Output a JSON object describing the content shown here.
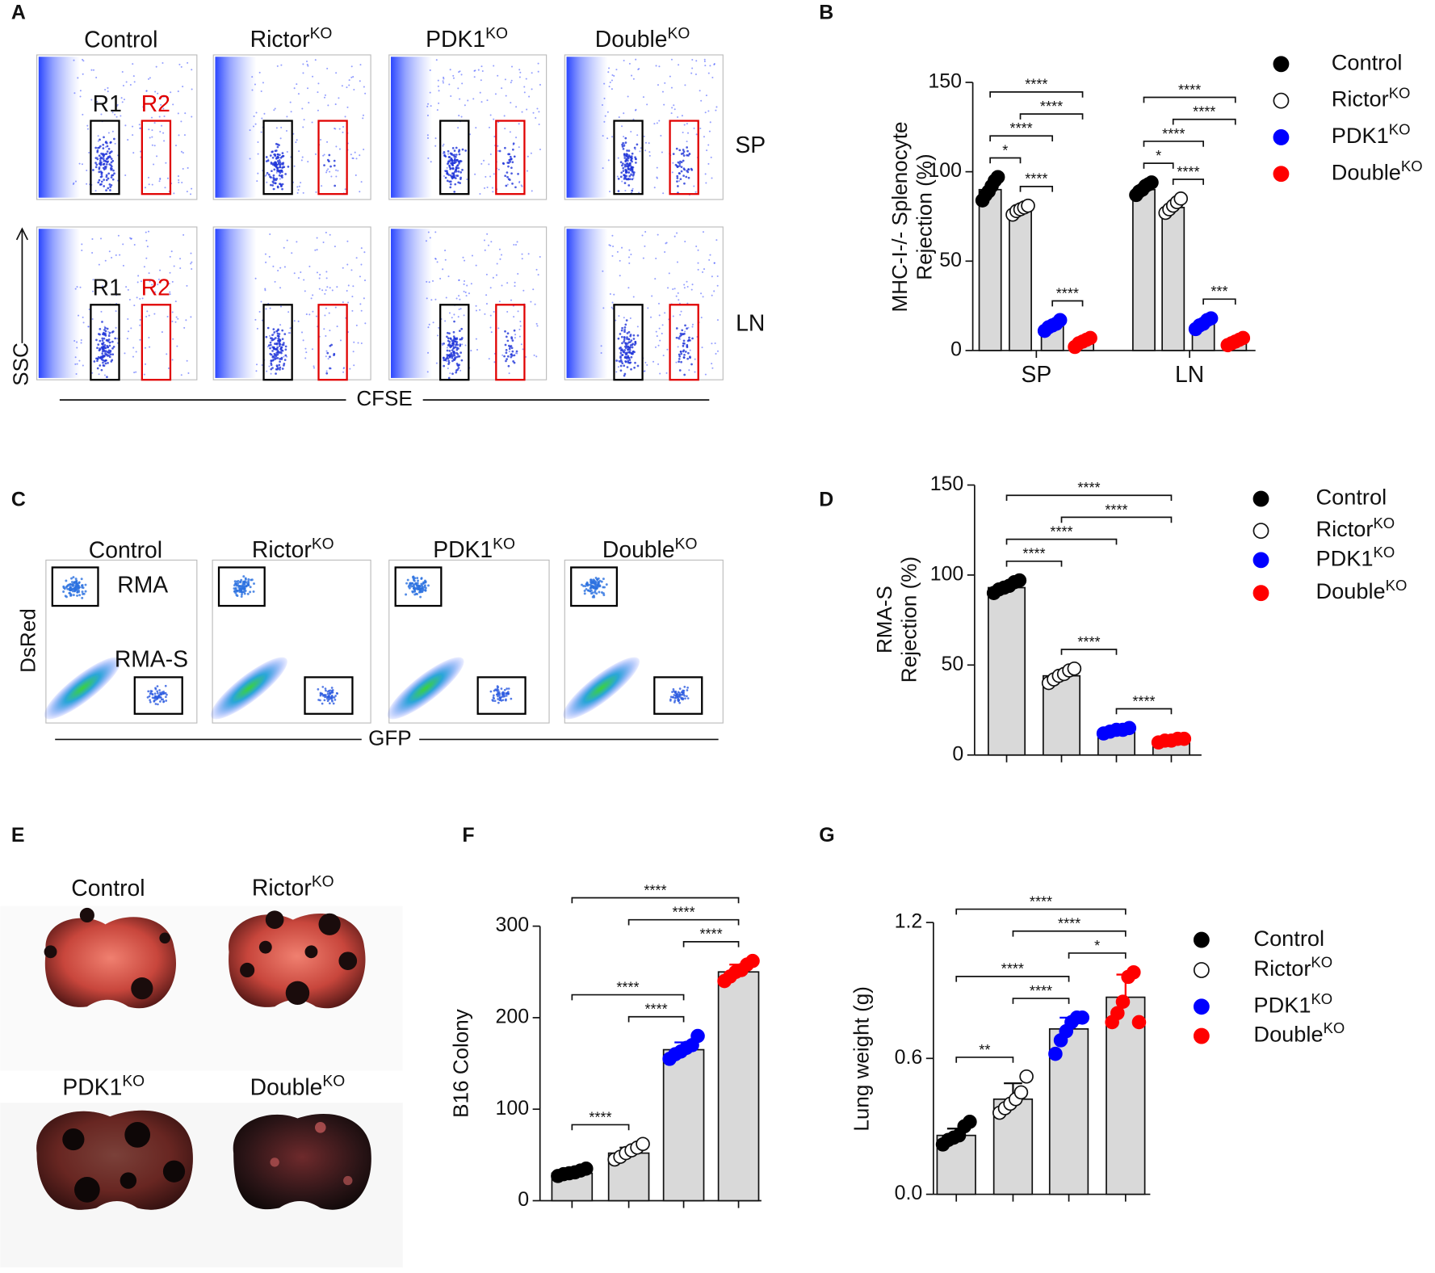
{
  "panels": {
    "A": {
      "label": "A",
      "columns": [
        "Control",
        "RictorKO",
        "PDK1KO",
        "DoubleKO"
      ],
      "rows": [
        "SP",
        "LN"
      ],
      "gates": [
        "R1",
        "R2"
      ],
      "x_axis": "CFSE",
      "y_axis": "SSC"
    },
    "C": {
      "label": "C",
      "columns": [
        "Control",
        "RictorKO",
        "PDK1KO",
        "DoubleKO"
      ],
      "gates": [
        "RMA",
        "RMA-S"
      ],
      "x_axis": "GFP",
      "y_axis": "DsRed"
    },
    "E": {
      "label": "E",
      "photos": [
        "Control",
        "RictorKO",
        "PDK1KO",
        "DoubleKO"
      ]
    }
  },
  "chart_data": [
    {
      "type": "bar",
      "panel_label": "B",
      "y_label": [
        "MHC-I-/- Splenocyte",
        "Rejection (%)"
      ],
      "categories": [
        "SP",
        "LN"
      ],
      "bar_color": "#d9d9d9",
      "ylim": [
        0,
        150
      ],
      "yticks": [
        0,
        50,
        100,
        150
      ],
      "series": [
        {
          "name": "Control",
          "color": "#000000",
          "values": [
            90,
            90
          ],
          "points": [
            [
              84,
              87,
              89,
              92,
              95,
              97
            ],
            [
              87,
              89,
              90,
              92,
              93,
              94
            ]
          ]
        },
        {
          "name": "RictorKO",
          "color": "#ffffff",
          "values": [
            79,
            80
          ],
          "points": [
            [
              76,
              78,
              79,
              80,
              81
            ],
            [
              77,
              79,
              81,
              83,
              85
            ]
          ]
        },
        {
          "name": "PDK1KO",
          "color": "#0000ff",
          "values": [
            14,
            15
          ],
          "points": [
            [
              11,
              13,
              14,
              15,
              17
            ],
            [
              12,
              14,
              15,
              17,
              18
            ]
          ]
        },
        {
          "name": "DoubleKO",
          "color": "#ff0000",
          "values": [
            5,
            5
          ],
          "points": [
            [
              2,
              4,
              5,
              6,
              7
            ],
            [
              3,
              4,
              5,
              6,
              7
            ]
          ]
        }
      ],
      "brackets": [
        {
          "group": 0,
          "from": 0,
          "to": 1,
          "label": "*"
        },
        {
          "group": 0,
          "from": 1,
          "to": 2,
          "label": "****"
        },
        {
          "group": 0,
          "from": 2,
          "to": 3,
          "label": "****"
        },
        {
          "group": 0,
          "from": 0,
          "to": 2,
          "label": "****"
        },
        {
          "group": 0,
          "from": 1,
          "to": 3,
          "label": "****"
        },
        {
          "group": 0,
          "from": 0,
          "to": 3,
          "label": "****"
        },
        {
          "group": 1,
          "from": 0,
          "to": 1,
          "label": "*"
        },
        {
          "group": 1,
          "from": 1,
          "to": 2,
          "label": "****"
        },
        {
          "group": 1,
          "from": 2,
          "to": 3,
          "label": "***"
        },
        {
          "group": 1,
          "from": 0,
          "to": 2,
          "label": "****"
        },
        {
          "group": 1,
          "from": 1,
          "to": 3,
          "label": "****"
        },
        {
          "group": 1,
          "from": 0,
          "to": 3,
          "label": "****"
        }
      ]
    },
    {
      "type": "bar",
      "panel_label": "D",
      "y_label": [
        "RMA-S",
        "Rejection (%)"
      ],
      "categories": [
        null
      ],
      "bar_color": "#d9d9d9",
      "ylim": [
        0,
        150
      ],
      "yticks": [
        0,
        50,
        100,
        150
      ],
      "series": [
        {
          "name": "Control",
          "color": "#000000",
          "values": [
            93
          ],
          "points": [
            [
              90,
              92,
              93,
              94,
              96,
              97
            ]
          ]
        },
        {
          "name": "RictorKO",
          "color": "#ffffff",
          "values": [
            44
          ],
          "points": [
            [
              40,
              42,
              44,
              45,
              47,
              48
            ]
          ]
        },
        {
          "name": "PDK1KO",
          "color": "#0000ff",
          "values": [
            13
          ],
          "points": [
            [
              12,
              13,
              14,
              14,
              15
            ]
          ]
        },
        {
          "name": "DoubleKO",
          "color": "#ff0000",
          "values": [
            8
          ],
          "points": [
            [
              7,
              8,
              8,
              9,
              9
            ]
          ]
        }
      ],
      "brackets": [
        {
          "group": 0,
          "from": 0,
          "to": 1,
          "label": "****"
        },
        {
          "group": 0,
          "from": 1,
          "to": 2,
          "label": "****"
        },
        {
          "group": 0,
          "from": 2,
          "to": 3,
          "label": "****"
        },
        {
          "group": 0,
          "from": 0,
          "to": 2,
          "label": "****"
        },
        {
          "group": 0,
          "from": 1,
          "to": 3,
          "label": "****"
        },
        {
          "group": 0,
          "from": 0,
          "to": 3,
          "label": "****"
        }
      ]
    },
    {
      "type": "bar",
      "panel_label": "F",
      "y_label": [
        "B16 Colony"
      ],
      "categories": [
        null
      ],
      "bar_color": "#d9d9d9",
      "ylim": [
        0,
        300
      ],
      "yticks": [
        0,
        100,
        200,
        300
      ],
      "series": [
        {
          "color": "#000000",
          "values": [
            30
          ],
          "errors": [
            3
          ],
          "points": [
            [
              27,
              29,
              30,
              31,
              33,
              35
            ]
          ]
        },
        {
          "color": "#ffffff",
          "values": [
            52
          ],
          "errors": [
            6
          ],
          "points": [
            [
              45,
              48,
              52,
              55,
              58,
              62
            ]
          ]
        },
        {
          "color": "#0000ff",
          "values": [
            165
          ],
          "errors": [
            8
          ],
          "points": [
            [
              155,
              160,
              163,
              167,
              170,
              180
            ]
          ]
        },
        {
          "color": "#ff0000",
          "values": [
            250
          ],
          "errors": [
            8
          ],
          "points": [
            [
              240,
              245,
              250,
              252,
              258,
              262
            ]
          ]
        }
      ],
      "brackets": [
        {
          "group": 0,
          "from": 0,
          "to": 1,
          "label": "****"
        },
        {
          "group": 0,
          "from": 1,
          "to": 2,
          "label": "****"
        },
        {
          "group": 0,
          "from": 2,
          "to": 3,
          "label": "****"
        },
        {
          "group": 0,
          "from": 0,
          "to": 2,
          "label": "****"
        },
        {
          "group": 0,
          "from": 1,
          "to": 3,
          "label": "****"
        },
        {
          "group": 0,
          "from": 0,
          "to": 3,
          "label": "****"
        }
      ]
    },
    {
      "type": "bar",
      "panel_label": "G",
      "y_label": [
        "Lung weight (g)"
      ],
      "categories": [
        null
      ],
      "bar_color": "#d9d9d9",
      "ylim": [
        0,
        1.2
      ],
      "yticks": [
        {
          "value": 0,
          "label": "0.0"
        },
        0.6,
        1.2
      ],
      "series": [
        {
          "name": "Control",
          "color": "#000000",
          "values": [
            0.26
          ],
          "errors": [
            0.03
          ],
          "points": [
            [
              0.22,
              0.24,
              0.25,
              0.26,
              0.3,
              0.32
            ]
          ]
        },
        {
          "name": "RictorKO",
          "color": "#ffffff",
          "values": [
            0.42
          ],
          "errors": [
            0.07
          ],
          "points": [
            [
              0.36,
              0.38,
              0.4,
              0.42,
              0.45,
              0.52
            ]
          ]
        },
        {
          "name": "PDK1KO",
          "color": "#0000ff",
          "values": [
            0.73
          ],
          "errors": [
            0.05
          ],
          "points": [
            [
              0.62,
              0.68,
              0.72,
              0.76,
              0.78,
              0.78
            ]
          ]
        },
        {
          "name": "DoubleKO",
          "color": "#ff0000",
          "values": [
            0.87
          ],
          "errors": [
            0.1
          ],
          "points": [
            [
              0.76,
              0.8,
              0.85,
              0.96,
              0.98,
              0.76
            ]
          ]
        }
      ],
      "brackets": [
        {
          "group": 0,
          "from": 0,
          "to": 1,
          "label": "**"
        },
        {
          "group": 0,
          "from": 1,
          "to": 2,
          "label": "****"
        },
        {
          "group": 0,
          "from": 2,
          "to": 3,
          "label": "*"
        },
        {
          "group": 0,
          "from": 0,
          "to": 2,
          "label": "****"
        },
        {
          "group": 0,
          "from": 1,
          "to": 3,
          "label": "****"
        },
        {
          "group": 0,
          "from": 0,
          "to": 3,
          "label": "****"
        }
      ]
    }
  ]
}
